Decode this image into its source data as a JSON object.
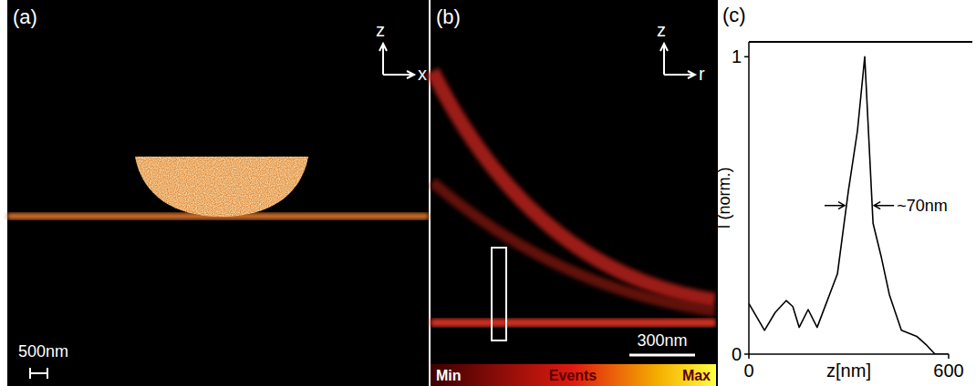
{
  "chart_data": [
    {
      "type": "image",
      "label": "(a)",
      "axis_labels": [
        "z",
        "x"
      ],
      "scale_bar": "500nm"
    },
    {
      "type": "image",
      "label": "(b)",
      "axis_labels": [
        "z",
        "r"
      ],
      "scale_bar": "300nm",
      "colorbar_labels": [
        "Min",
        "Events",
        "Max"
      ]
    },
    {
      "type": "line",
      "label": "(c)",
      "xlabel": "z[nm]",
      "ylabel": "I (norm.)",
      "annotation": "~70nm",
      "color": "#000000",
      "x": [
        0,
        47,
        79,
        112,
        132,
        151,
        178,
        205,
        266,
        299,
        326,
        348,
        373,
        397,
        422,
        458,
        504,
        534,
        559,
        600
      ],
      "values": [
        0.17,
        0.08,
        0.14,
        0.18,
        0.16,
        0.09,
        0.15,
        0.09,
        0.27,
        0.55,
        0.75,
        1.0,
        0.44,
        0.33,
        0.2,
        0.08,
        0.06,
        0.03,
        0,
        0
      ],
      "xlim": [
        0,
        600
      ],
      "ylim": [
        0,
        1.05
      ],
      "xticks": [
        0,
        600
      ],
      "yticks": [
        0,
        1
      ]
    }
  ]
}
